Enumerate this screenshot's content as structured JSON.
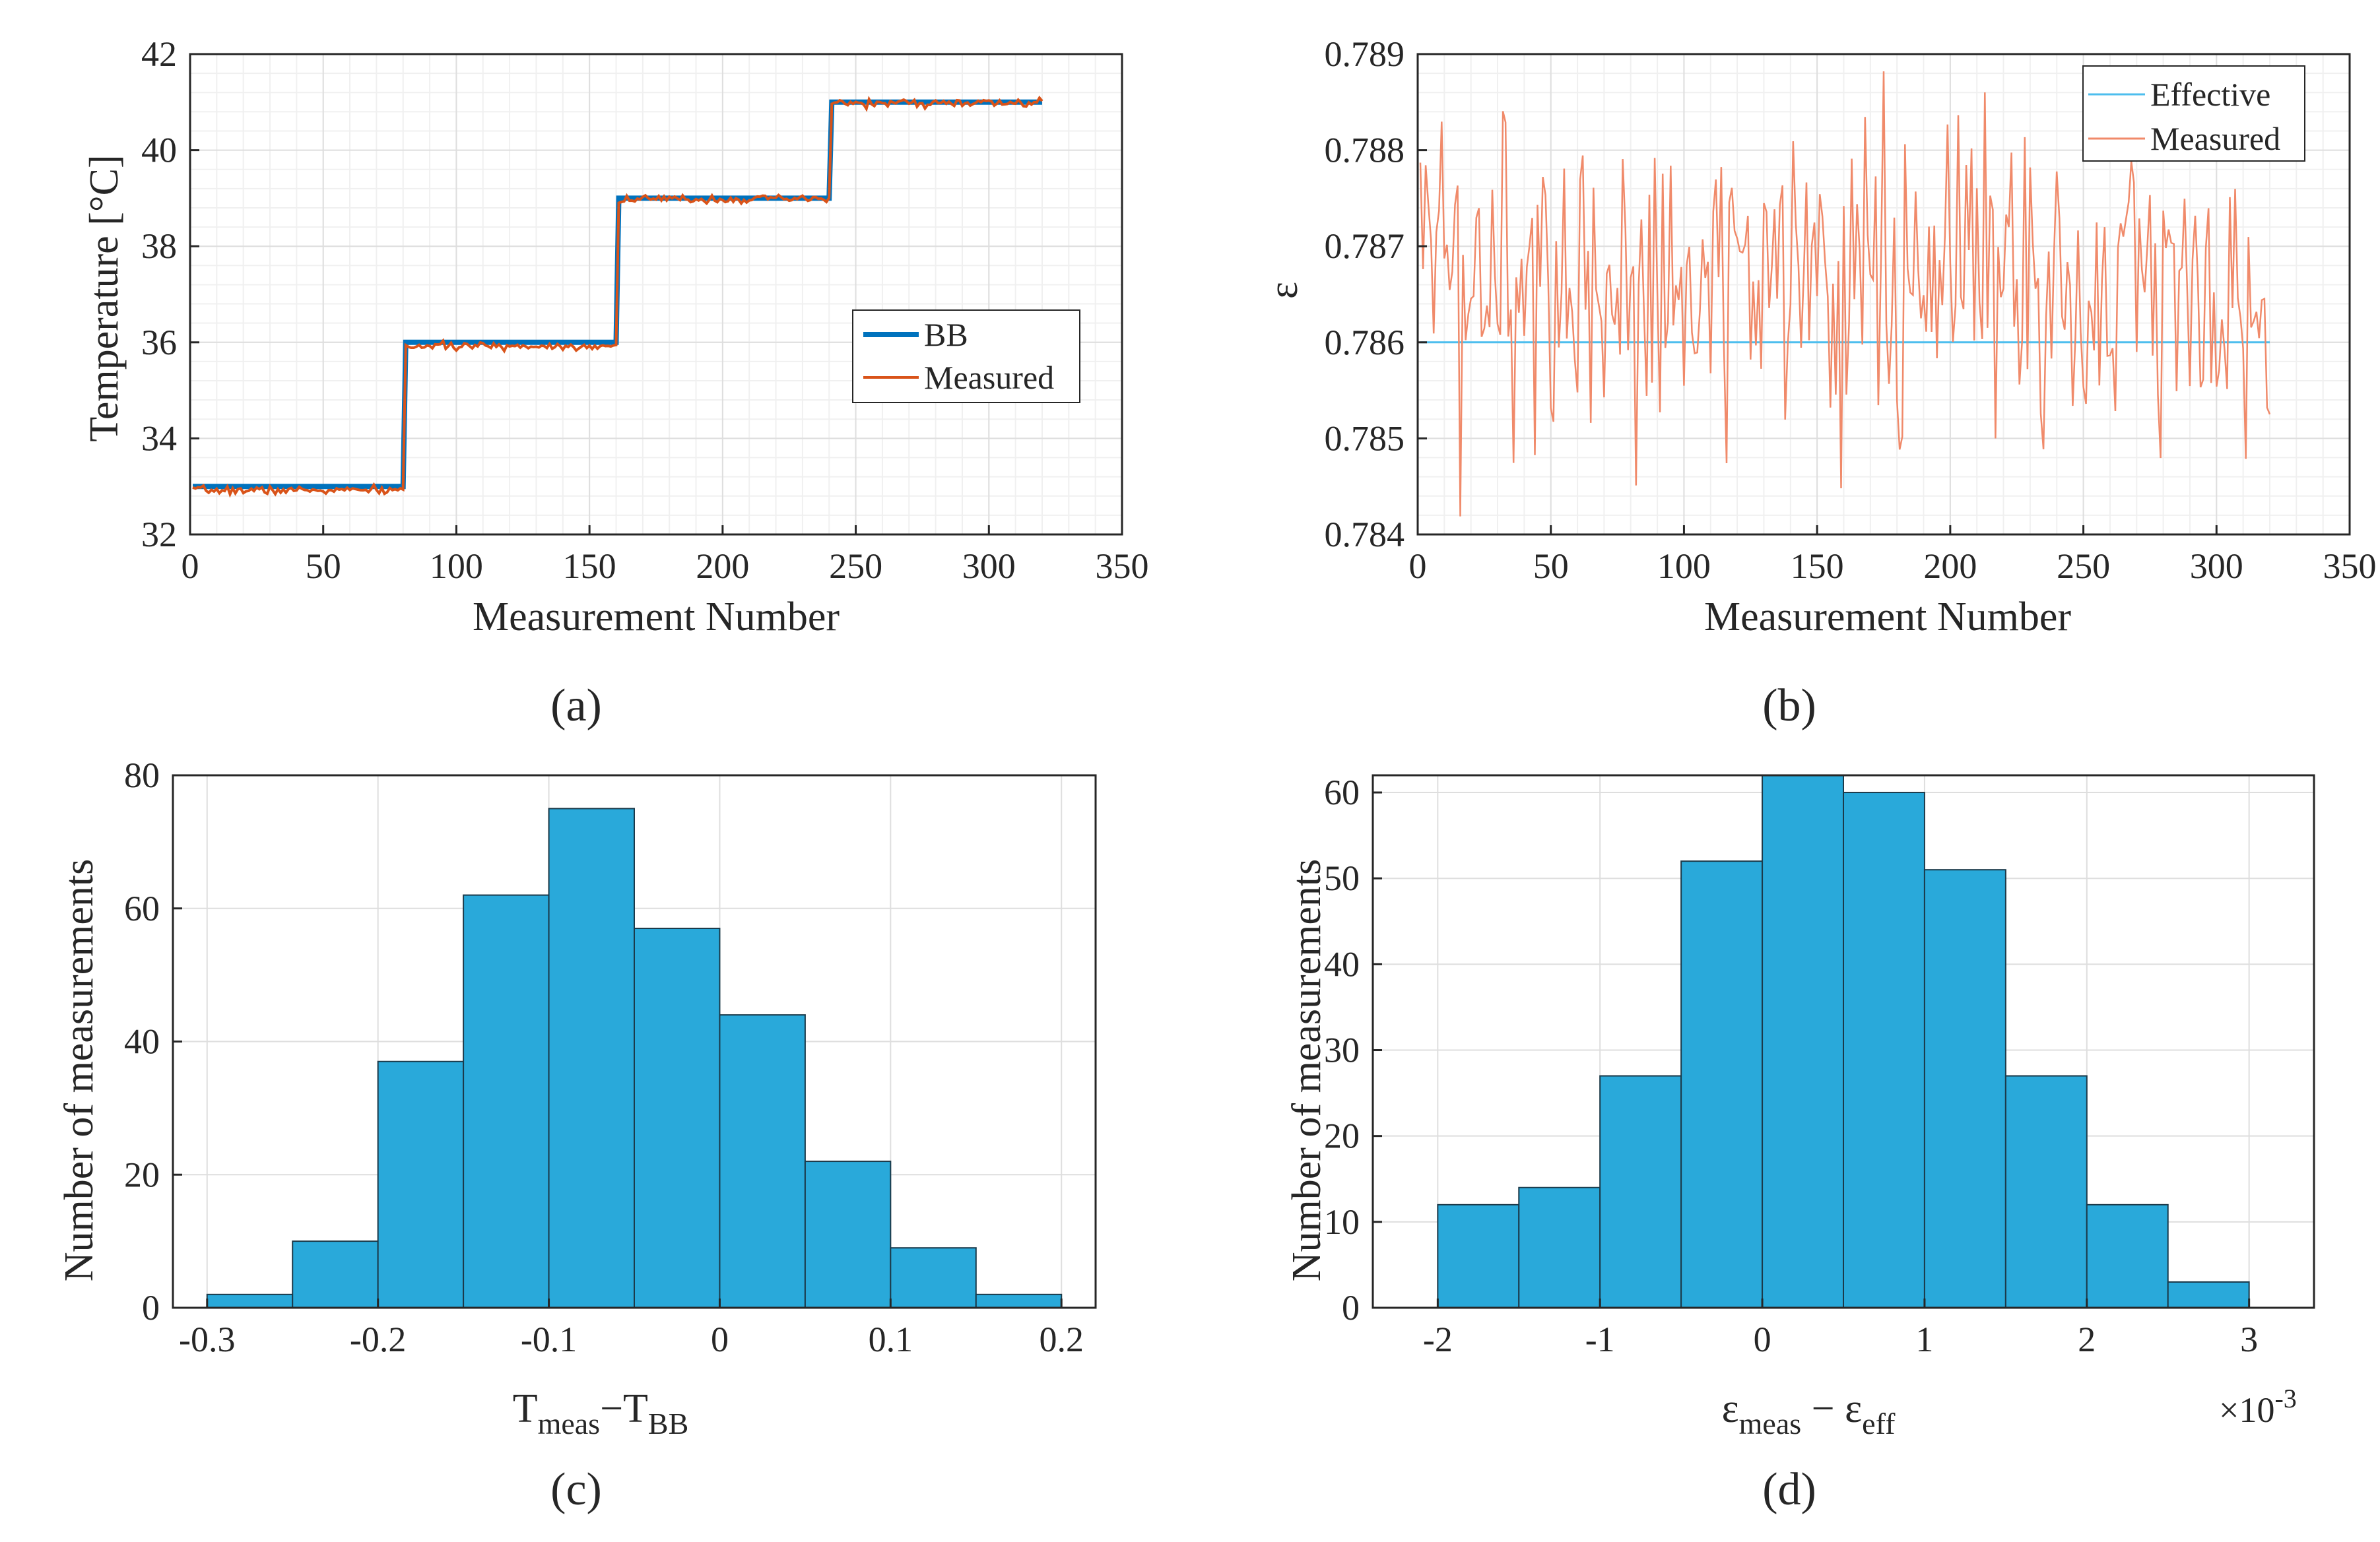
{
  "figure": {
    "panel_labels": [
      "(a)",
      "(b)",
      "(c)",
      "(d)"
    ]
  },
  "chart_data": [
    {
      "id": "a",
      "type": "line",
      "title": "",
      "xlabel": "Measurement Number",
      "ylabel": "Temperature [°C]",
      "xlim": [
        0,
        350
      ],
      "ylim": [
        32,
        42
      ],
      "xticks": [
        0,
        50,
        100,
        150,
        200,
        250,
        300,
        350
      ],
      "yticks": [
        32,
        34,
        36,
        38,
        40,
        42
      ],
      "grid": true,
      "legend_position": "right-middle",
      "series": [
        {
          "name": "BB",
          "color": "#0072BD",
          "segments": [
            {
              "x0": 1,
              "x1": 80,
              "y": 33.0
            },
            {
              "x0": 81,
              "x1": 160,
              "y": 36.0
            },
            {
              "x0": 161,
              "x1": 240,
              "y": 39.0
            },
            {
              "x0": 241,
              "x1": 320,
              "y": 41.0
            }
          ]
        },
        {
          "name": "Measured",
          "color": "#D95319",
          "segments": [
            {
              "x0": 1,
              "x1": 80,
              "y": 32.92,
              "noise": 0.07
            },
            {
              "x0": 81,
              "x1": 160,
              "y": 35.92,
              "noise": 0.06
            },
            {
              "x0": 161,
              "x1": 240,
              "y": 38.98,
              "noise": 0.07
            },
            {
              "x0": 241,
              "x1": 320,
              "y": 40.98,
              "noise": 0.07
            }
          ]
        }
      ]
    },
    {
      "id": "b",
      "type": "line",
      "title": "",
      "xlabel": "Measurement Number",
      "ylabel": "ε",
      "xlim": [
        0,
        350
      ],
      "ylim": [
        0.784,
        0.789
      ],
      "xticks": [
        0,
        50,
        100,
        150,
        200,
        250,
        300,
        350
      ],
      "yticks": [
        0.784,
        0.785,
        0.786,
        0.787,
        0.788,
        0.789
      ],
      "ytick_labels": [
        "0.784",
        "0.785",
        "0.786",
        "0.787",
        "0.788",
        "0.789"
      ],
      "grid": true,
      "legend_position": "top-right",
      "n_points": 320,
      "series": [
        {
          "name": "Effective",
          "color": "#4DBEEE",
          "constant": 0.786
        },
        {
          "name": "Measured",
          "color": "#F08A6A",
          "mean": 0.7866,
          "std": 0.0009
        }
      ]
    },
    {
      "id": "c",
      "type": "bar",
      "title": "",
      "xlabel_main": "T",
      "xlabel_sub1": "meas",
      "xlabel_op": "−T",
      "xlabel_sub2": "BB",
      "ylabel": "Number of measurements",
      "bin_edges": [
        -0.3,
        -0.25,
        -0.2,
        -0.15,
        -0.1,
        -0.05,
        0,
        0.05,
        0.1,
        0.15,
        0.2
      ],
      "values": [
        2,
        10,
        37,
        62,
        75,
        57,
        44,
        22,
        9,
        2
      ],
      "xlim": [
        -0.32,
        0.22
      ],
      "ylim": [
        0,
        80
      ],
      "xticks": [
        -0.3,
        -0.2,
        -0.1,
        0,
        0.1,
        0.2
      ],
      "xtick_labels": [
        "-0.3",
        "-0.2",
        "-0.1",
        "0",
        "0.1",
        "0.2"
      ],
      "yticks": [
        0,
        20,
        40,
        60,
        80
      ],
      "color": "#29A9DA",
      "grid": true
    },
    {
      "id": "d",
      "type": "bar",
      "title": "",
      "xlabel_main": "ε",
      "xlabel_sub1": "meas",
      "xlabel_op": " − ε",
      "xlabel_sub2": "eff",
      "x_multiplier": "×10",
      "x_multiplier_exp": "-3",
      "ylabel": "Number of measurements",
      "bin_edges": [
        -2,
        -1.5,
        -1,
        -0.5,
        0,
        0.5,
        1,
        1.5,
        2,
        2.5,
        3
      ],
      "values": [
        12,
        14,
        27,
        52,
        62,
        60,
        51,
        27,
        12,
        3
      ],
      "xlim": [
        -2.4,
        3.4
      ],
      "ylim": [
        0,
        62
      ],
      "xticks": [
        -2,
        -1,
        0,
        1,
        2,
        3
      ],
      "xtick_labels": [
        "-2",
        "-1",
        "0",
        "1",
        "2",
        "3"
      ],
      "yticks": [
        0,
        10,
        20,
        30,
        40,
        50,
        60
      ],
      "color": "#29A9DA",
      "grid": true
    }
  ]
}
